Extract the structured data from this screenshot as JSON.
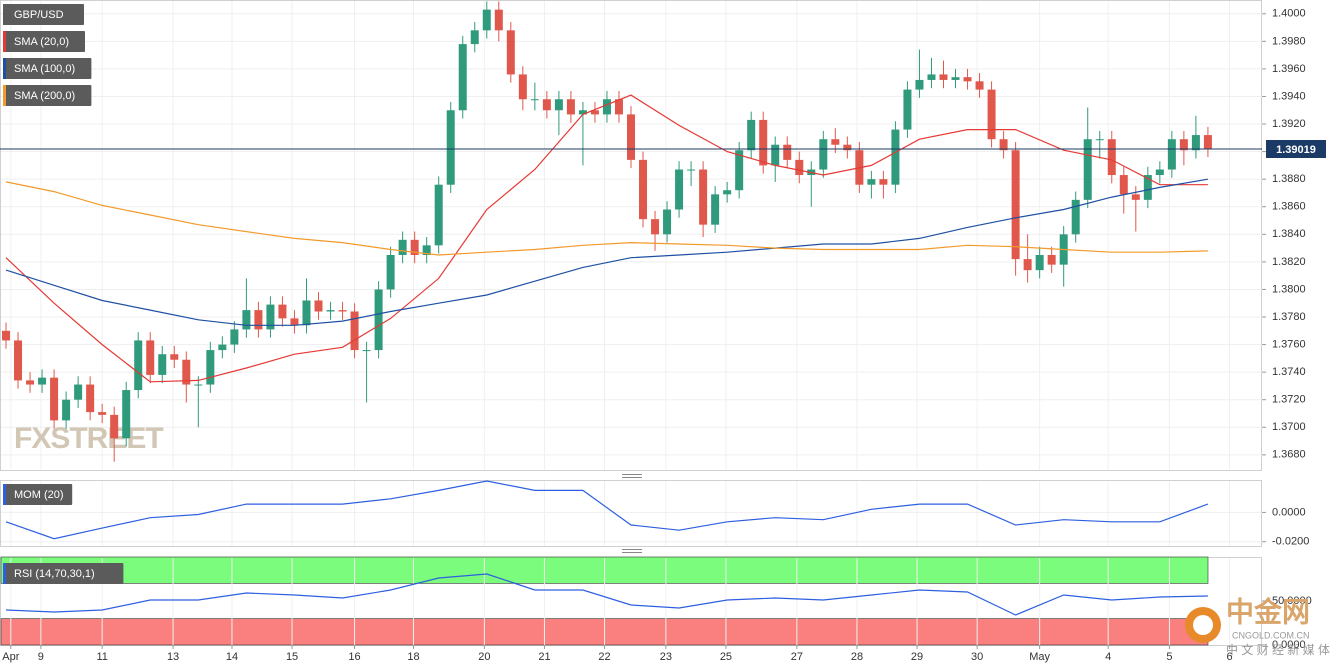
{
  "chart_data": [
    {
      "type": "candlestick",
      "title": "GBP/USD",
      "watermark": "FXSTREET",
      "up_color": "#2f9a7c",
      "down_color": "#e0584c",
      "open": [
        1.377,
        1.3763,
        1.3734,
        1.3731,
        1.3736,
        1.3705,
        1.372,
        1.3731,
        1.3711,
        1.3709,
        1.3692,
        1.3727,
        1.3763,
        1.3738,
        1.3753,
        1.3749,
        1.3731,
        1.3731,
        1.3756,
        1.376,
        1.3771,
        1.3785,
        1.3771,
        1.3789,
        1.3779,
        1.3774,
        1.3792,
        1.3784,
        1.3785,
        1.3784,
        1.3756,
        1.3756,
        1.38,
        1.3825,
        1.3836,
        1.3825,
        1.3832,
        1.3876,
        1.393,
        1.3978,
        1.3988,
        1.4003,
        1.3988,
        1.3956,
        1.3938,
        1.3938,
        1.393,
        1.3938,
        1.3927,
        1.393,
        1.3927,
        1.3938,
        1.3927,
        1.3894,
        1.3851,
        1.384,
        1.3858,
        1.3887,
        1.3887,
        1.3847,
        1.3869,
        1.3872,
        1.3901,
        1.3923,
        1.389,
        1.3905,
        1.3894,
        1.3883,
        1.3887,
        1.3909,
        1.3905,
        1.3901,
        1.3876,
        1.388,
        1.3876,
        1.3916,
        1.3945,
        1.3952,
        1.3956,
        1.3952,
        1.3954,
        1.3951,
        1.3945,
        1.3909,
        1.3901,
        1.3822,
        1.3814,
        1.3825,
        1.3818,
        1.384,
        1.3865,
        1.3909,
        1.3909,
        1.3883,
        1.3869,
        1.3865,
        1.3883,
        1.3887,
        1.3909,
        1.3901,
        1.3912
      ],
      "high": [
        1.3776,
        1.3769,
        1.374,
        1.3742,
        1.3742,
        1.3726,
        1.3737,
        1.3737,
        1.3717,
        1.3715,
        1.3733,
        1.3769,
        1.3769,
        1.3759,
        1.3759,
        1.3755,
        1.3737,
        1.3762,
        1.3766,
        1.3777,
        1.3808,
        1.3791,
        1.3795,
        1.3795,
        1.3785,
        1.3808,
        1.3798,
        1.3791,
        1.3791,
        1.379,
        1.3762,
        1.3806,
        1.3831,
        1.3842,
        1.3842,
        1.3838,
        1.3882,
        1.3936,
        1.3984,
        1.3994,
        1.4009,
        1.4009,
        1.3994,
        1.3962,
        1.395,
        1.3944,
        1.3944,
        1.3944,
        1.3936,
        1.3936,
        1.3944,
        1.3944,
        1.3933,
        1.39,
        1.3857,
        1.3864,
        1.3893,
        1.3893,
        1.3893,
        1.3875,
        1.3878,
        1.3907,
        1.3929,
        1.3929,
        1.3911,
        1.3911,
        1.39,
        1.3893,
        1.3915,
        1.3917,
        1.3911,
        1.3907,
        1.3886,
        1.3886,
        1.3922,
        1.3951,
        1.3974,
        1.3968,
        1.3966,
        1.396,
        1.396,
        1.3957,
        1.3951,
        1.3915,
        1.3907,
        1.384,
        1.3831,
        1.3831,
        1.3846,
        1.3871,
        1.3932,
        1.3915,
        1.3915,
        1.3889,
        1.3875,
        1.3889,
        1.3893,
        1.3915,
        1.3915,
        1.3926,
        1.3918
      ],
      "low": [
        1.3757,
        1.3728,
        1.3725,
        1.3725,
        1.3699,
        1.3699,
        1.3714,
        1.3705,
        1.3703,
        1.3675,
        1.3686,
        1.3721,
        1.3732,
        1.3732,
        1.3743,
        1.3718,
        1.37,
        1.3725,
        1.375,
        1.3754,
        1.3765,
        1.3765,
        1.3765,
        1.3773,
        1.3768,
        1.3768,
        1.3778,
        1.3778,
        1.3778,
        1.375,
        1.3718,
        1.375,
        1.3794,
        1.3819,
        1.3819,
        1.3819,
        1.3826,
        1.387,
        1.3924,
        1.3972,
        1.3982,
        1.398,
        1.395,
        1.393,
        1.393,
        1.3924,
        1.3912,
        1.3921,
        1.389,
        1.3921,
        1.3921,
        1.3921,
        1.3888,
        1.3845,
        1.3828,
        1.3834,
        1.3852,
        1.3875,
        1.3838,
        1.3841,
        1.3863,
        1.3866,
        1.3895,
        1.3884,
        1.3878,
        1.3888,
        1.3877,
        1.386,
        1.3881,
        1.3899,
        1.3895,
        1.387,
        1.3866,
        1.3866,
        1.387,
        1.391,
        1.3939,
        1.3946,
        1.3946,
        1.3946,
        1.3945,
        1.3939,
        1.3903,
        1.3895,
        1.381,
        1.3805,
        1.3808,
        1.3812,
        1.3802,
        1.3834,
        1.3859,
        1.3895,
        1.3877,
        1.3855,
        1.3842,
        1.3859,
        1.3877,
        1.3881,
        1.389,
        1.3895,
        1.3896
      ],
      "close": [
        1.3763,
        1.3734,
        1.3731,
        1.3736,
        1.3705,
        1.372,
        1.3731,
        1.3711,
        1.3709,
        1.3692,
        1.3727,
        1.3763,
        1.3738,
        1.3753,
        1.3749,
        1.3731,
        1.3731,
        1.3756,
        1.376,
        1.3771,
        1.3785,
        1.3771,
        1.3789,
        1.3779,
        1.3774,
        1.3792,
        1.3784,
        1.3785,
        1.3784,
        1.3756,
        1.3756,
        1.38,
        1.3825,
        1.3836,
        1.3825,
        1.3832,
        1.3876,
        1.393,
        1.3978,
        1.3988,
        1.4003,
        1.3988,
        1.3956,
        1.3938,
        1.3938,
        1.393,
        1.3938,
        1.3927,
        1.393,
        1.3927,
        1.3938,
        1.3927,
        1.3894,
        1.3851,
        1.384,
        1.3858,
        1.3887,
        1.3887,
        1.3847,
        1.3869,
        1.3872,
        1.3901,
        1.3923,
        1.389,
        1.3905,
        1.3894,
        1.3883,
        1.3887,
        1.3909,
        1.3905,
        1.3901,
        1.3876,
        1.388,
        1.3876,
        1.3916,
        1.3945,
        1.3952,
        1.3956,
        1.3952,
        1.3954,
        1.3951,
        1.3945,
        1.3909,
        1.3901,
        1.3822,
        1.3814,
        1.3825,
        1.3818,
        1.384,
        1.3865,
        1.3909,
        1.3909,
        1.3883,
        1.3869,
        1.3865,
        1.3883,
        1.3887,
        1.3909,
        1.3901,
        1.3912,
        1.3902
      ],
      "series": [
        {
          "name": "SMA (20,0)",
          "color": "#e53935",
          "x": [
            0,
            4,
            8,
            12,
            16,
            20,
            24,
            28,
            32,
            36,
            40,
            44,
            48,
            52,
            56,
            60,
            64,
            68,
            72,
            76,
            80,
            84,
            88,
            92,
            96,
            100
          ],
          "values": [
            1.3823,
            1.379,
            1.376,
            1.3733,
            1.3734,
            1.3743,
            1.3753,
            1.3758,
            1.3779,
            1.3808,
            1.3858,
            1.3887,
            1.3927,
            1.3941,
            1.3919,
            1.39,
            1.389,
            1.3883,
            1.389,
            1.3909,
            1.3916,
            1.3916,
            1.3901,
            1.3894,
            1.3876,
            1.3876
          ]
        },
        {
          "name": "SMA (100,0)",
          "color": "#1f4fa3",
          "x": [
            0,
            4,
            8,
            12,
            16,
            20,
            24,
            28,
            32,
            36,
            40,
            44,
            48,
            52,
            56,
            60,
            64,
            68,
            72,
            76,
            80,
            84,
            88,
            92,
            96,
            100
          ],
          "values": [
            1.3814,
            1.3803,
            1.3792,
            1.3785,
            1.3778,
            1.3774,
            1.3774,
            1.3777,
            1.3784,
            1.379,
            1.3796,
            1.3806,
            1.3816,
            1.3823,
            1.3825,
            1.3827,
            1.383,
            1.3833,
            1.3833,
            1.3837,
            1.3845,
            1.3852,
            1.3858,
            1.3867,
            1.3874,
            1.388
          ]
        },
        {
          "name": "SMA (200,0)",
          "color": "#f39a2b",
          "x": [
            0,
            4,
            8,
            12,
            16,
            20,
            24,
            28,
            32,
            36,
            40,
            44,
            48,
            52,
            56,
            60,
            64,
            68,
            72,
            76,
            80,
            84,
            88,
            92,
            96,
            100
          ],
          "values": [
            1.3878,
            1.3871,
            1.3861,
            1.3854,
            1.3847,
            1.3842,
            1.3837,
            1.3834,
            1.3829,
            1.3825,
            1.3827,
            1.3829,
            1.3832,
            1.3834,
            1.3833,
            1.3832,
            1.383,
            1.3829,
            1.3829,
            1.3829,
            1.3832,
            1.3831,
            1.3829,
            1.3827,
            1.3827,
            1.3828
          ]
        }
      ],
      "last_price": 1.39019,
      "xlim": [
        -0.5,
        104.5
      ],
      "xticks": [
        {
          "value": 0.4,
          "label": "Apr"
        },
        {
          "value": 2.9,
          "label": "9"
        },
        {
          "value": 8,
          "label": "11"
        },
        {
          "value": 13.9,
          "label": "13"
        },
        {
          "value": 18.8,
          "label": "14"
        },
        {
          "value": 23.8,
          "label": "15"
        },
        {
          "value": 29,
          "label": "16"
        },
        {
          "value": 33.9,
          "label": "18"
        },
        {
          "value": 39.8,
          "label": "20"
        },
        {
          "value": 44.8,
          "label": "21"
        },
        {
          "value": 49.8,
          "label": "22"
        },
        {
          "value": 54.9,
          "label": "23"
        },
        {
          "value": 59.9,
          "label": "25"
        },
        {
          "value": 65.8,
          "label": "27"
        },
        {
          "value": 70.8,
          "label": "28"
        },
        {
          "value": 75.8,
          "label": "29"
        },
        {
          "value": 80.8,
          "label": "30"
        },
        {
          "value": 86,
          "label": "May"
        },
        {
          "value": 91.7,
          "label": "4"
        },
        {
          "value": 96.8,
          "label": "5"
        },
        {
          "value": 101.8,
          "label": "6"
        }
      ],
      "ylim": [
        1.3669,
        1.401
      ],
      "yticks": [
        {
          "value": 1.368,
          "label": "1.3680"
        },
        {
          "value": 1.37,
          "label": "1.3700"
        },
        {
          "value": 1.372,
          "label": "1.3720"
        },
        {
          "value": 1.374,
          "label": "1.3740"
        },
        {
          "value": 1.376,
          "label": "1.3760"
        },
        {
          "value": 1.378,
          "label": "1.3780"
        },
        {
          "value": 1.38,
          "label": "1.3800"
        },
        {
          "value": 1.382,
          "label": "1.3820"
        },
        {
          "value": 1.384,
          "label": "1.3840"
        },
        {
          "value": 1.386,
          "label": "1.3860"
        },
        {
          "value": 1.388,
          "label": "1.3880"
        },
        {
          "value": 1.39,
          "label": "1.3900"
        },
        {
          "value": 1.392,
          "label": "1.3920"
        },
        {
          "value": 1.394,
          "label": "1.3940"
        },
        {
          "value": 1.396,
          "label": "1.3960"
        },
        {
          "value": 1.398,
          "label": "1.3980"
        },
        {
          "value": 1.4,
          "label": "1.4000"
        }
      ]
    },
    {
      "type": "line",
      "series": [
        {
          "name": "MOM (20)",
          "color": "#2d5fe0",
          "x": [
            0,
            4,
            8,
            12,
            16,
            20,
            24,
            28,
            32,
            36,
            40,
            44,
            48,
            52,
            56,
            60,
            64,
            68,
            72,
            76,
            80,
            84,
            88,
            92,
            96,
            100
          ],
          "values": [
            -0.0064,
            -0.0179,
            -0.0107,
            -0.0036,
            -0.0014,
            0.0057,
            0.0057,
            0.0057,
            0.0093,
            0.015,
            0.0214,
            0.015,
            0.015,
            -0.0086,
            -0.0121,
            -0.0064,
            -0.0036,
            -0.005,
            0.0021,
            0.0057,
            0.0057,
            -0.0086,
            -0.005,
            -0.0064,
            -0.0064,
            0.0057
          ]
        }
      ],
      "ylim": [
        -0.0229,
        0.0221
      ],
      "yticks": [
        {
          "value": 0,
          "label": "0.0000"
        },
        {
          "value": -0.02,
          "label": "-0.0200"
        }
      ]
    },
    {
      "type": "line",
      "series": [
        {
          "name": "RSI (14,70,30,1)",
          "color": "#2d5fe0",
          "x": [
            0,
            4,
            8,
            12,
            16,
            20,
            24,
            28,
            32,
            36,
            40,
            44,
            48,
            52,
            56,
            60,
            64,
            68,
            72,
            76,
            80,
            84,
            88,
            92,
            96,
            100
          ],
          "values": [
            39.8,
            37.5,
            39.8,
            51.1,
            51.1,
            59.1,
            56.8,
            53.4,
            62.5,
            76.1,
            80.7,
            62.5,
            62.5,
            45.5,
            42.0,
            51.1,
            53.4,
            51.1,
            56.8,
            62.5,
            60.2,
            34.1,
            56.8,
            51.1,
            54.5,
            55.7
          ]
        }
      ],
      "bands": [
        {
          "from": 70,
          "to": 100,
          "color": "#7cfc7c"
        },
        {
          "from": 0,
          "to": 30,
          "color": "#fa8080"
        }
      ],
      "ylim": [
        0,
        100
      ],
      "yticks": [
        {
          "value": 50,
          "label": "50.0000"
        },
        {
          "value": 0,
          "label": "0.0000"
        }
      ]
    }
  ],
  "logo": {
    "name": "中金网",
    "domain": "CNGOLD.COM.CN",
    "tagline": "中 文 财 经 新 媒 体"
  }
}
